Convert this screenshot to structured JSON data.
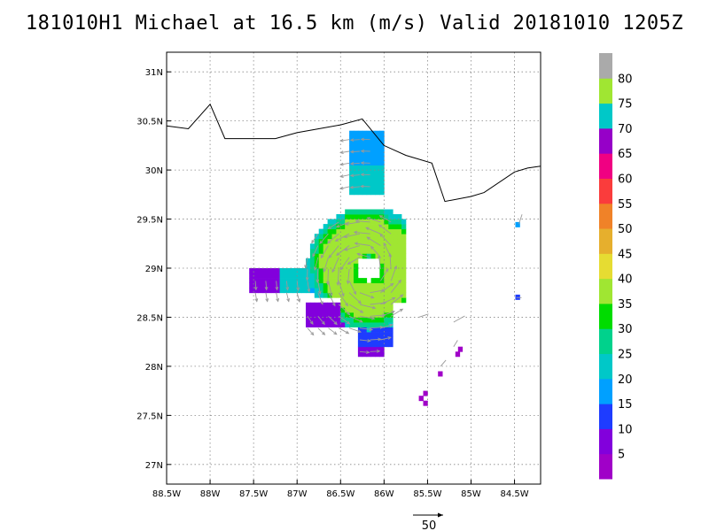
{
  "title": "181010H1 Michael at 16.5 km (m/s) Valid 20181010 1205Z",
  "map": {
    "lon_range": [
      -88.5,
      -84.2
    ],
    "lat_range": [
      26.8,
      31.2
    ],
    "lon_ticks": [
      {
        "v": -88.5,
        "label": "88.5W"
      },
      {
        "v": -88,
        "label": "88W"
      },
      {
        "v": -87.5,
        "label": "87.5W"
      },
      {
        "v": -87,
        "label": "87W"
      },
      {
        "v": -86.5,
        "label": "86.5W"
      },
      {
        "v": -86,
        "label": "86W"
      },
      {
        "v": -85.5,
        "label": "85.5W"
      },
      {
        "v": -85,
        "label": "85W"
      },
      {
        "v": -84.5,
        "label": "84.5W"
      }
    ],
    "lat_ticks": [
      {
        "v": 27,
        "label": "27N"
      },
      {
        "v": 27.5,
        "label": "27.5N"
      },
      {
        "v": 28,
        "label": "28N"
      },
      {
        "v": 28.5,
        "label": "28.5N"
      },
      {
        "v": 29,
        "label": "29N"
      },
      {
        "v": 29.5,
        "label": "29.5N"
      },
      {
        "v": 30,
        "label": "30N"
      },
      {
        "v": 30.5,
        "label": "30.5N"
      },
      {
        "v": 31,
        "label": "31N"
      }
    ],
    "coastline": [
      [
        -88.5,
        30.45
      ],
      [
        -88.25,
        30.42
      ],
      [
        -88.0,
        30.67
      ],
      [
        -87.83,
        30.32
      ],
      [
        -87.5,
        30.32
      ],
      [
        -87.25,
        30.32
      ],
      [
        -87.0,
        30.38
      ],
      [
        -86.75,
        30.42
      ],
      [
        -86.5,
        30.46
      ],
      [
        -86.25,
        30.52
      ],
      [
        -86.0,
        30.25
      ],
      [
        -85.75,
        30.15
      ],
      [
        -85.45,
        30.07
      ],
      [
        -85.3,
        29.68
      ],
      [
        -85.0,
        29.73
      ],
      [
        -84.85,
        29.77
      ],
      [
        -84.5,
        29.98
      ],
      [
        -84.35,
        30.02
      ],
      [
        -84.2,
        30.04
      ]
    ],
    "eye_center": [
      -86.2,
      28.97
    ]
  },
  "colorbar": {
    "colors": [
      "#a000c8",
      "#8200dc",
      "#1e3cff",
      "#00a0ff",
      "#00c8c8",
      "#00d28c",
      "#00dc00",
      "#a0e632",
      "#e6dc32",
      "#e6af2d",
      "#f08228",
      "#fa3c3c",
      "#f00082",
      "#9600c8",
      "#00c8c8",
      "#a0e632",
      "#aaaaaa"
    ],
    "labels": [
      "5",
      "10",
      "15",
      "20",
      "25",
      "30",
      "35",
      "40",
      "45",
      "50",
      "55",
      "60",
      "65",
      "70",
      "75",
      "80"
    ]
  },
  "reference_vector": {
    "label": "50"
  }
}
